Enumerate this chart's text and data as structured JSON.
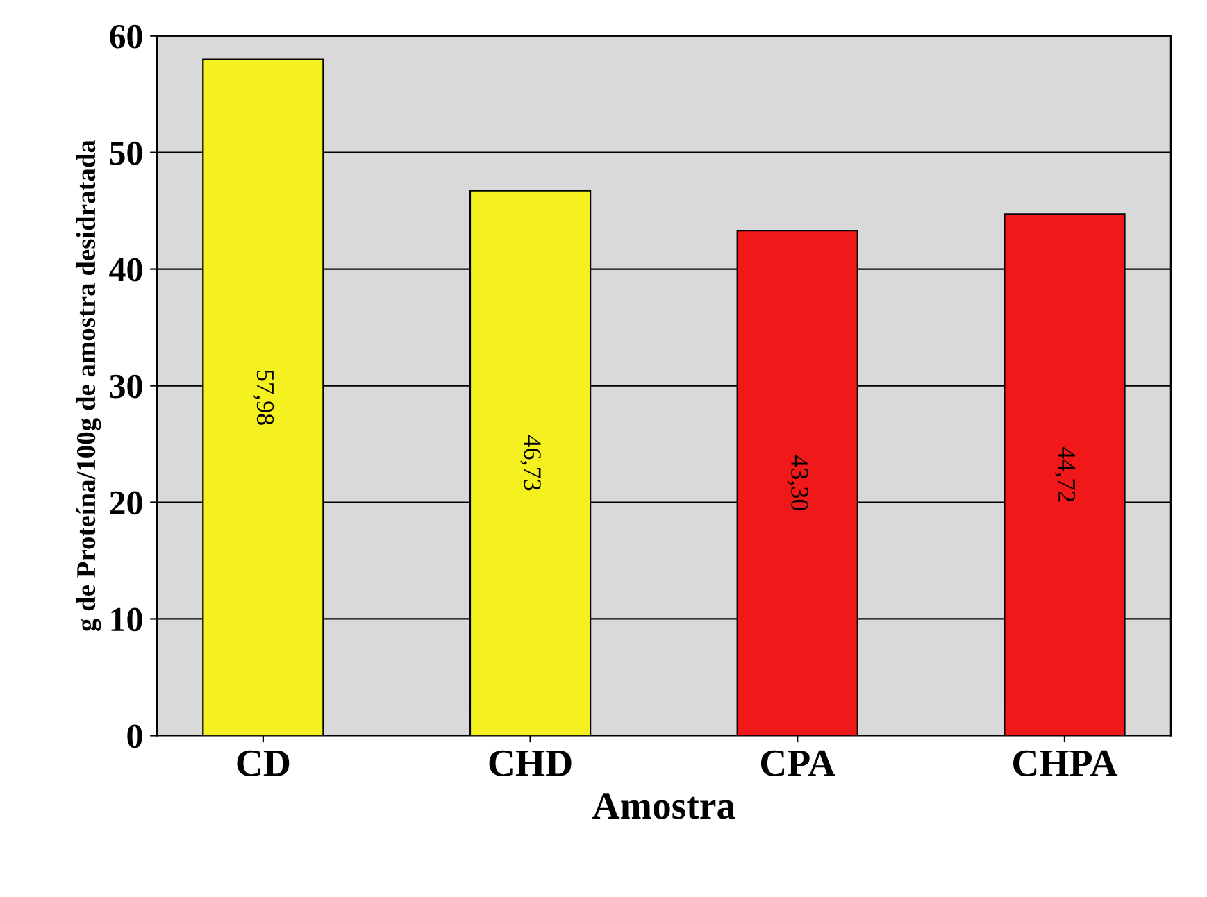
{
  "chart_data": {
    "type": "bar",
    "xlabel": "Amostra",
    "ylabel": "g de Proteína/100g de amostra desidratada",
    "categories": [
      "CD",
      "CHD",
      "CPA",
      "CHPA"
    ],
    "values": [
      57.98,
      46.73,
      43.3,
      44.72
    ],
    "colors": [
      "#f5f020",
      "#f5f020",
      "#f01818",
      "#f01818"
    ],
    "value_labels": [
      "57,98",
      "46,73",
      "43,30",
      "44,72"
    ],
    "ylim": [
      0,
      60
    ],
    "yticks": [
      0,
      10,
      20,
      30,
      40,
      50,
      60
    ],
    "grid": "y"
  }
}
